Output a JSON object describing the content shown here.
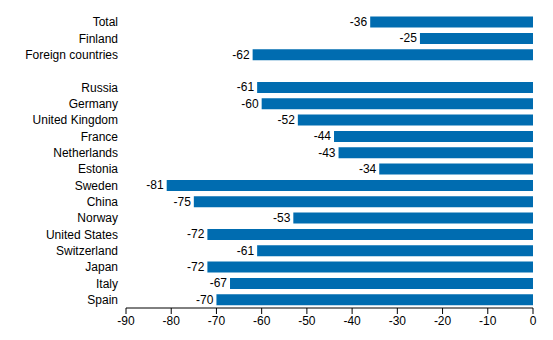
{
  "chart_data": {
    "type": "bar",
    "orientation": "horizontal",
    "categories": [
      "Total",
      "Finland",
      "Foreign countries",
      null,
      "Russia",
      "Germany",
      "United Kingdom",
      "France",
      "Netherlands",
      "Estonia",
      "Sweden",
      "China",
      "Norway",
      "United States",
      "Switzerland",
      "Japan",
      "Italy",
      "Spain"
    ],
    "values": [
      -36,
      -25,
      -62,
      null,
      -61,
      -60,
      -52,
      -44,
      -43,
      -34,
      -81,
      -75,
      -53,
      -72,
      -61,
      -72,
      -67,
      -70
    ],
    "color": "#006cb0",
    "xlim": [
      -90,
      0
    ],
    "xticks": [
      -90,
      -80,
      -70,
      -60,
      -50,
      -40,
      -30,
      -20,
      -10,
      0
    ],
    "grid": false,
    "data_labels": true
  }
}
